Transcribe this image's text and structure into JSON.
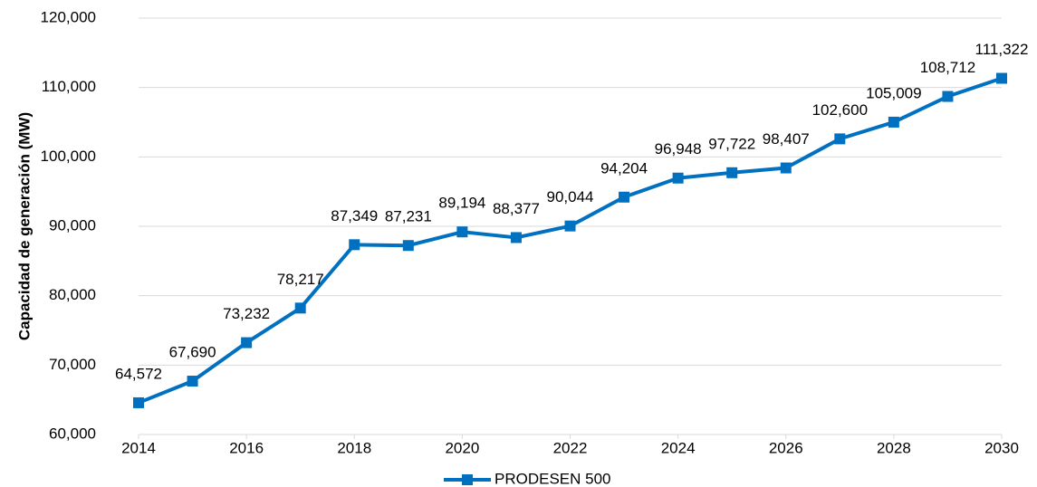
{
  "chart_data": {
    "type": "line",
    "y_label": "Capacidad de generación (MW)",
    "x": [
      2014,
      2015,
      2016,
      2017,
      2018,
      2019,
      2020,
      2021,
      2022,
      2023,
      2024,
      2025,
      2026,
      2027,
      2028,
      2029,
      2030
    ],
    "series": [
      {
        "name": "PRODESEN 500",
        "color": "#0070c0",
        "values": [
          64572,
          67690,
          73232,
          78217,
          87349,
          87231,
          89194,
          88377,
          90044,
          94204,
          96948,
          97722,
          98407,
          102600,
          105009,
          108712,
          111322
        ],
        "value_labels": [
          "64,572",
          "67,690",
          "73,232",
          "78,217",
          "87,349",
          "87,231",
          "89,194",
          "88,377",
          "90,044",
          "94,204",
          "96,948",
          "97,722",
          "98,407",
          "102,600",
          "105,009",
          "108,712",
          "111,322"
        ]
      }
    ],
    "xlim": [
      2014,
      2030
    ],
    "xticks": [
      2014,
      2016,
      2018,
      2020,
      2022,
      2024,
      2026,
      2028,
      2030
    ],
    "ylim": [
      60000,
      120000
    ],
    "yticks": [
      {
        "value": 60000,
        "label": "60,000"
      },
      {
        "value": 70000,
        "label": "70,000"
      },
      {
        "value": 80000,
        "label": "80,000"
      },
      {
        "value": 90000,
        "label": "90,000"
      },
      {
        "value": 100000,
        "label": "100,000"
      },
      {
        "value": 110000,
        "label": "110,000"
      },
      {
        "value": 120000,
        "label": "120,000"
      }
    ],
    "grid": true,
    "legend": "bottom"
  }
}
